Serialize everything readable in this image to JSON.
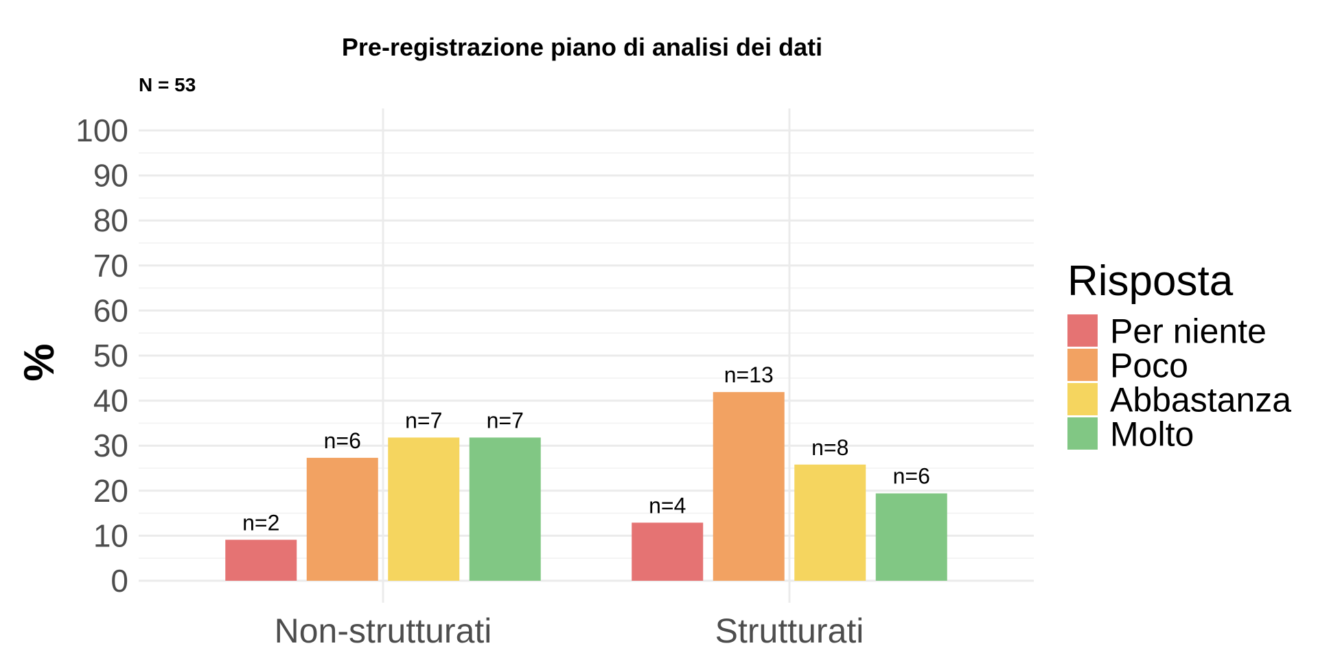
{
  "chart_data": {
    "type": "bar",
    "title": "Pre-registrazione piano di analisi dei dati",
    "subtitle": "N = 53",
    "ylabel": "%",
    "xlabel": "",
    "ylim": [
      0,
      100
    ],
    "yticks": [
      0,
      10,
      20,
      30,
      40,
      50,
      60,
      70,
      80,
      90,
      100
    ],
    "grid": true,
    "legend_position": "right",
    "legend_title": "Risposta",
    "categories": [
      "Non-strutturati",
      "Strutturati"
    ],
    "series": [
      {
        "name": "Per niente",
        "color": "#E57373",
        "values": [
          9.1,
          12.9
        ],
        "labels": [
          "n=2",
          "n=4"
        ]
      },
      {
        "name": "Poco",
        "color": "#F2A262",
        "values": [
          27.3,
          41.9
        ],
        "labels": [
          "n=6",
          "n=13"
        ]
      },
      {
        "name": "Abbastanza",
        "color": "#F5D55F",
        "values": [
          31.8,
          25.8
        ],
        "labels": [
          "n=7",
          "n=8"
        ]
      },
      {
        "name": "Molto",
        "color": "#81C784",
        "values": [
          31.8,
          19.4
        ],
        "labels": [
          "n=7",
          "n=6"
        ]
      }
    ]
  }
}
